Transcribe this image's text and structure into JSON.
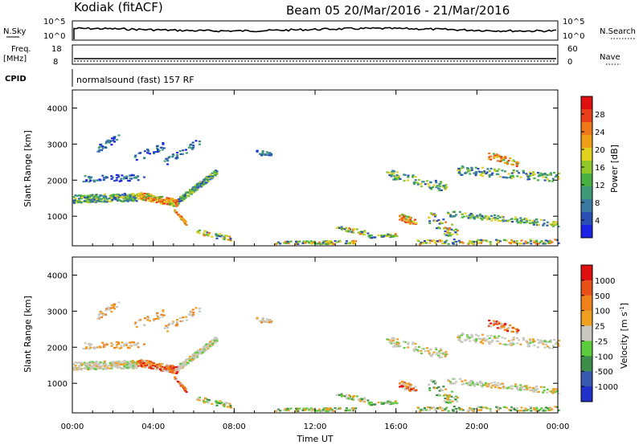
{
  "header": {
    "station": "Kodiak (fitACF)",
    "beam_date": "Beam 05  20/Mar/2016 - 21/Mar/2016"
  },
  "status_panels": {
    "nsky_label": "N.Sky",
    "nsky_ticks": [
      "10^5",
      "10^0"
    ],
    "nsearch_label": "N.Search",
    "nsearch_ticks": [
      "10^5",
      "10^0"
    ],
    "freq_label": "Freq.",
    "freq_unit": "[MHz]",
    "freq_ticks": [
      "18",
      "8"
    ],
    "nave_label": "Nave",
    "nave_ticks": [
      "60",
      "0"
    ],
    "cpid_label": "CPID",
    "cpid_text": "normalsound (fast) 157 RF"
  },
  "chart_data": [
    {
      "type": "heatmap",
      "name": "power",
      "ylabel": "Slant Range [km]",
      "ylim": [
        180,
        4500
      ],
      "yticks": [
        "4000",
        "3000",
        "2000",
        "1000"
      ],
      "colorbar_label": "Power [dB]",
      "colorbar_ticks": [
        "28",
        "24",
        "20",
        "16",
        "12",
        "8",
        "4"
      ],
      "colors": [
        "#1a22e6",
        "#2a4fb5",
        "#3a7aa0",
        "#3f9a78",
        "#48b040",
        "#8fc828",
        "#e0d020",
        "#f0a018",
        "#f07818",
        "#e84018",
        "#e01010"
      ]
    },
    {
      "type": "heatmap",
      "name": "velocity",
      "ylabel": "Slant Range [km]",
      "ylim": [
        180,
        4500
      ],
      "yticks": [
        "4000",
        "3000",
        "2000",
        "1000"
      ],
      "colorbar_label": "Velocity [m s^-1]",
      "colorbar_ticks": [
        "1000",
        "500",
        "100",
        "25",
        "-25",
        "-100",
        "-500",
        "-1000"
      ],
      "colors": [
        "#2030c8",
        "#3858b0",
        "#3c8e48",
        "#5ccb3c",
        "#c8c8c0",
        "#f0a020",
        "#f08018",
        "#e85018",
        "#e01010"
      ]
    }
  ],
  "time_axis": {
    "label": "Time UT",
    "ticks": [
      "00:00",
      "04:00",
      "08:00",
      "12:00",
      "16:00",
      "20:00",
      "00:00"
    ]
  }
}
